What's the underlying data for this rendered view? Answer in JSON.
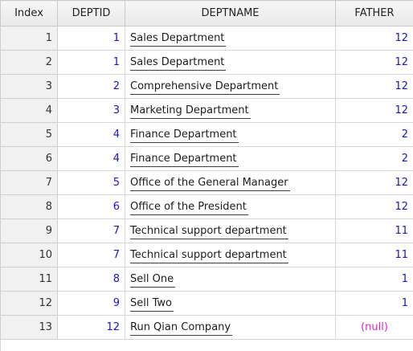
{
  "columns": {
    "index": "Index",
    "deptid": "DEPTID",
    "deptname": "DEPTNAME",
    "father": "FATHER"
  },
  "rows": [
    {
      "index": "1",
      "deptid": "1",
      "deptname": "Sales Department",
      "father": "12"
    },
    {
      "index": "2",
      "deptid": "1",
      "deptname": "Sales Department",
      "father": "12"
    },
    {
      "index": "3",
      "deptid": "2",
      "deptname": "Comprehensive Department",
      "father": "12"
    },
    {
      "index": "4",
      "deptid": "3",
      "deptname": "Marketing Department",
      "father": "12"
    },
    {
      "index": "5",
      "deptid": "4",
      "deptname": "Finance Department",
      "father": "2"
    },
    {
      "index": "6",
      "deptid": "4",
      "deptname": "Finance Department",
      "father": "2"
    },
    {
      "index": "7",
      "deptid": "5",
      "deptname": "Office of the General Manager",
      "father": "12"
    },
    {
      "index": "8",
      "deptid": "6",
      "deptname": "Office of the President",
      "father": "12"
    },
    {
      "index": "9",
      "deptid": "7",
      "deptname": "Technical support department",
      "father": "11"
    },
    {
      "index": "10",
      "deptid": "7",
      "deptname": "Technical support department",
      "father": "11"
    },
    {
      "index": "11",
      "deptid": "8",
      "deptname": "Sell One",
      "father": "1"
    },
    {
      "index": "12",
      "deptid": "9",
      "deptname": "Sell Two",
      "father": "1"
    },
    {
      "index": "13",
      "deptid": "12",
      "deptname": "Run Qian Company",
      "father": "(null)"
    }
  ],
  "colors": {
    "number": "#1414d8",
    "null": "#e020d8",
    "header_bg": "#ececec",
    "index_bg": "#f1f1f1"
  }
}
